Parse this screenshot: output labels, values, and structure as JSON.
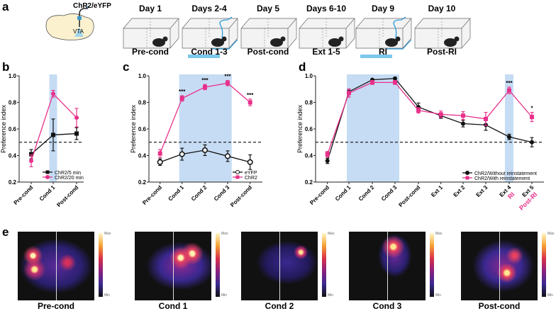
{
  "panel_labels": [
    "a",
    "b",
    "c",
    "d",
    "e"
  ],
  "panel_a": {
    "injection_label": "ChR2/eYFP",
    "region_label": "VTA",
    "days": [
      "Day 1",
      "Days 2-4",
      "Day 5",
      "Days 6-10",
      "Day 9",
      "Day 10"
    ],
    "phases": [
      "Pre-cond",
      "Cond 1-3",
      "Post-cond",
      "Ext 1-5",
      "RI",
      "Post-RI"
    ],
    "stim_color": "#7cc8ec"
  },
  "chart_data": [
    {
      "type": "line",
      "id": "b",
      "ylabel": "Preference index",
      "ylim": [
        0.2,
        1.0
      ],
      "yticks": [
        "0.2",
        "0.4",
        "0.6",
        "0.8",
        "1.0"
      ],
      "chance_line": 0.5,
      "categories": [
        "Pre-cond",
        "Cond 1",
        "Post-cond"
      ],
      "shaded": [
        [
          1,
          1
        ]
      ],
      "series": [
        {
          "name": "ChR2/5 min",
          "color": "#111111",
          "marker": "square",
          "values": [
            0.41,
            0.555,
            0.565
          ],
          "err": [
            0.035,
            0.12,
            0.045
          ]
        },
        {
          "name": "ChR2/20 min",
          "color": "#e8308a",
          "marker": "circle",
          "values": [
            0.36,
            0.865,
            0.685
          ],
          "err": [
            0.045,
            0.025,
            0.07
          ]
        }
      ],
      "legend": "bottom-right"
    },
    {
      "type": "line",
      "id": "c",
      "ylabel": "Preference index",
      "ylim": [
        0.2,
        1.0
      ],
      "yticks": [
        "0.2",
        "0.4",
        "0.6",
        "0.8",
        "1.0"
      ],
      "chance_line": 0.5,
      "categories": [
        "Pre-cond",
        "Cond 1",
        "Cond 2",
        "Cond 3",
        "Post-cond"
      ],
      "shaded": [
        [
          1,
          3
        ]
      ],
      "annotations": [
        {
          "index": 1,
          "text": "***"
        },
        {
          "index": 2,
          "text": "***"
        },
        {
          "index": 3,
          "text": "***"
        },
        {
          "index": 4,
          "text": "***"
        }
      ],
      "series": [
        {
          "name": "eYFP",
          "color": "#111111",
          "marker": "open-circle",
          "values": [
            0.35,
            0.41,
            0.44,
            0.395,
            0.35
          ],
          "err": [
            0.025,
            0.045,
            0.04,
            0.04,
            0.055
          ]
        },
        {
          "name": "ChR2",
          "color": "#e8308a",
          "marker": "square",
          "values": [
            0.415,
            0.83,
            0.915,
            0.945,
            0.8
          ],
          "err": [
            0.03,
            0.02,
            0.02,
            0.02,
            0.025
          ]
        }
      ],
      "legend": "bottom-right"
    },
    {
      "type": "line",
      "id": "d",
      "ylabel": "Preference index",
      "ylim": [
        0.2,
        1.0
      ],
      "yticks": [
        "0.2",
        "0.4",
        "0.6",
        "0.8",
        "1.0"
      ],
      "chance_line": 0.5,
      "categories": [
        "Pre-cond",
        "Cond 1",
        "Cond 2",
        "Cond 3",
        "Post-cond",
        "Ext 1",
        "Ext 2",
        "Ext 3",
        "Ext 4",
        "Ext 5"
      ],
      "sub_labels": {
        "8": "RI",
        "9": "Post-RI"
      },
      "shaded": [
        [
          1,
          3
        ],
        [
          8,
          8
        ]
      ],
      "annotations": [
        {
          "index": 8,
          "text": "***"
        },
        {
          "index": 9,
          "text": "*"
        }
      ],
      "series": [
        {
          "name": "ChR2/Without reinstatement",
          "color": "#111111",
          "marker": "circle",
          "values": [
            0.36,
            0.88,
            0.97,
            0.98,
            0.765,
            0.7,
            0.64,
            0.63,
            0.54,
            0.5
          ],
          "err": [
            0.02,
            0.02,
            0.005,
            0.005,
            0.03,
            0.02,
            0.025,
            0.04,
            0.02,
            0.035
          ]
        },
        {
          "name": "ChR2/With reinstatement",
          "color": "#e8308a",
          "marker": "square",
          "values": [
            0.41,
            0.87,
            0.95,
            0.95,
            0.74,
            0.71,
            0.7,
            0.675,
            0.89,
            0.69
          ],
          "err": [
            0.02,
            0.03,
            0.015,
            0.015,
            0.02,
            0.025,
            0.03,
            0.05,
            0.025,
            0.035
          ]
        }
      ],
      "legend": "bottom-right"
    }
  ],
  "panel_e": {
    "maps": [
      "Pre-cond",
      "Cond 1",
      "Cond 2",
      "Cond 3",
      "Post-cond"
    ],
    "scale_max": "Max",
    "scale_min": "Min"
  }
}
